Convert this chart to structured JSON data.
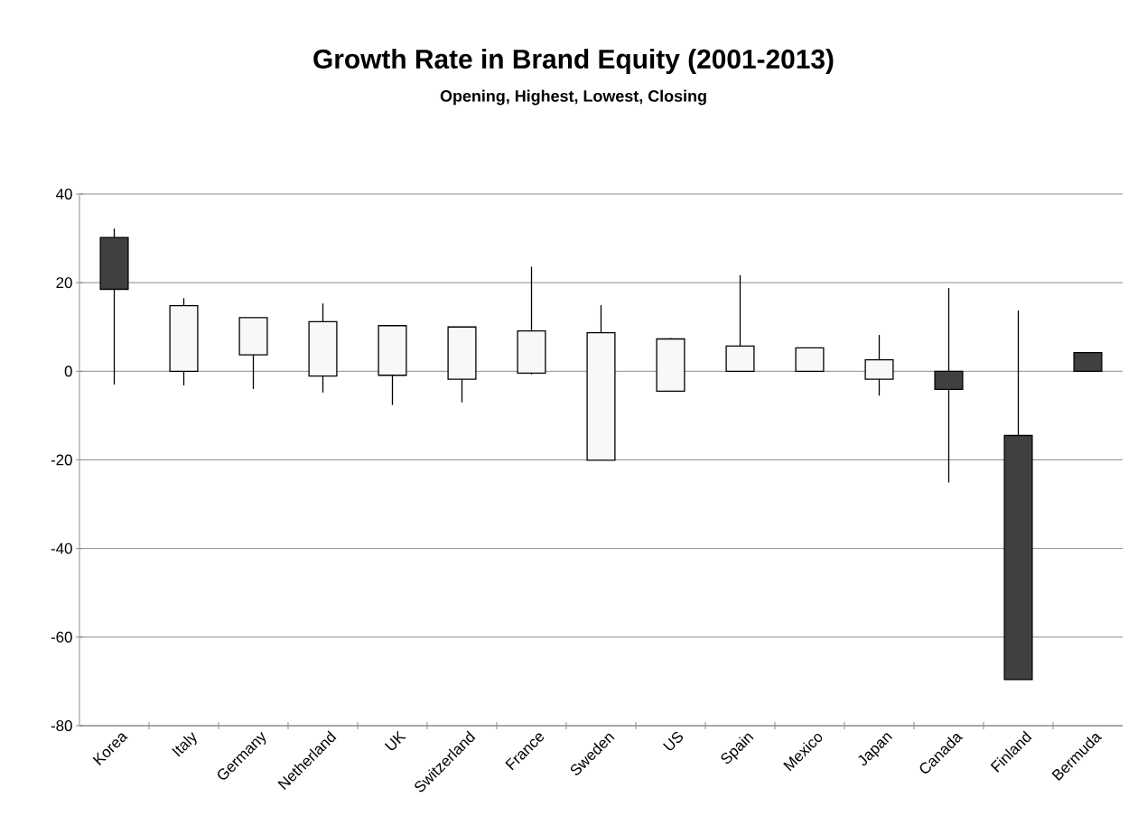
{
  "chart_data": {
    "type": "candlestick",
    "title": "Growth Rate in Brand Equity (2001-2013)",
    "subtitle": "Opening, Highest, Lowest, Closing",
    "categories": [
      "Korea",
      "Italy",
      "Germany",
      "Netherland",
      "UK",
      "Switzerland",
      "France",
      "Sweden",
      "US",
      "Spain",
      "Mexico",
      "Japan",
      "Canada",
      "Finland",
      "Bermuda"
    ],
    "ohlc": [
      [
        30.2,
        32.2,
        -3,
        18.5
      ],
      [
        0,
        16.5,
        -3.2,
        14.8
      ],
      [
        3.7,
        12.1,
        -4,
        12.1
      ],
      [
        -1.1,
        15.3,
        -4.8,
        11.2
      ],
      [
        -0.9,
        10.3,
        -7.6,
        10.3
      ],
      [
        -1.8,
        10,
        -7,
        10
      ],
      [
        -0.4,
        23.6,
        -0.7,
        9.1
      ],
      [
        -20.1,
        14.9,
        -20.1,
        8.7
      ],
      [
        -4.5,
        7.5,
        -4.5,
        7.3
      ],
      [
        0,
        21.7,
        0,
        5.7
      ],
      [
        0,
        5.3,
        0,
        5.3
      ],
      [
        -1.8,
        8.2,
        -5.5,
        2.6
      ],
      [
        0,
        18.8,
        -25.1,
        -4.1
      ],
      [
        -14.5,
        13.7,
        -69.6,
        -69.6
      ],
      [
        4.2,
        4.2,
        0,
        0
      ]
    ],
    "colors": [
      "#404040",
      "#f8f8f8",
      "#f8f8f8",
      "#f8f8f8",
      "#f8f8f8",
      "#f8f8f8",
      "#f8f8f8",
      "#f8f8f8",
      "#f8f8f8",
      "#f8f8f8",
      "#f8f8f8",
      "#f8f8f8",
      "#404040",
      "#404040",
      "#404040"
    ],
    "ylim": [
      -80,
      40
    ],
    "yticks": [
      -80,
      -60,
      -40,
      -20,
      0,
      20,
      40
    ],
    "grid": "y"
  }
}
